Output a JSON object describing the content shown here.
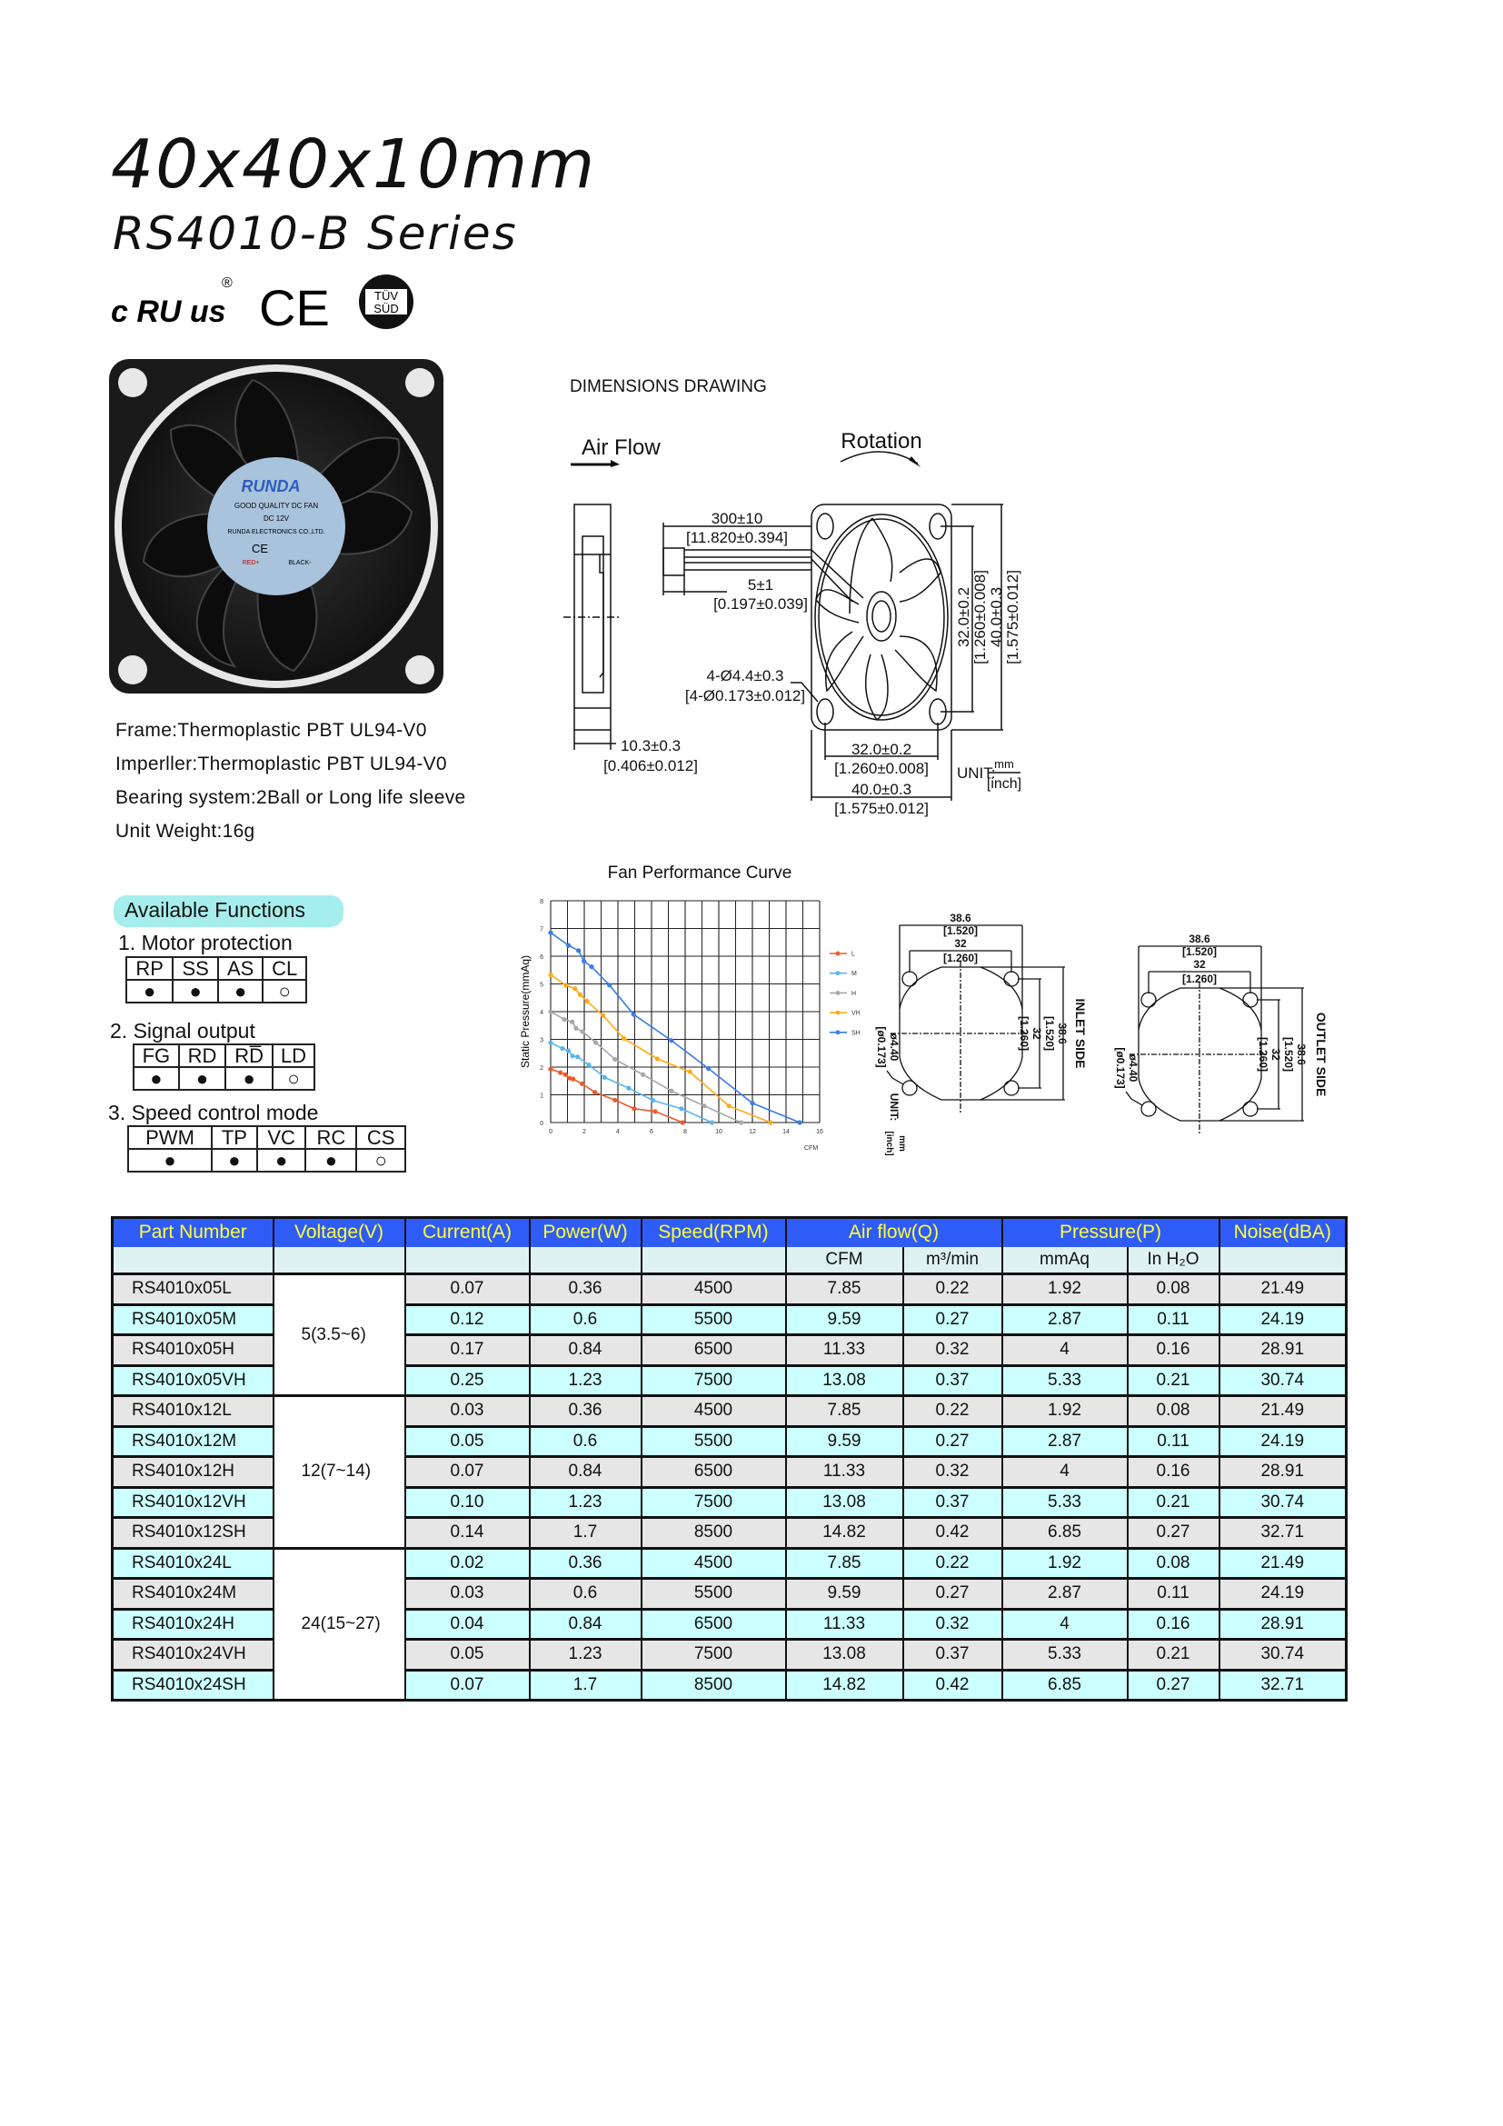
{
  "header": {
    "title": "40x40x10mm",
    "subtitle": "RS4010-B Series",
    "certifications": {
      "ul": "c RU us",
      "ul_reg": "®",
      "ce": "CE",
      "tuv_top": "TÜV",
      "tuv_bottom": "SÜD"
    }
  },
  "product_photo": {
    "brand": "RUNDA",
    "line1": "GOOD QUALITY DC FAN",
    "line2": "DC    12V",
    "line3": "RUNDA ELECTRONICS CO.,LTD.",
    "ce": "CE",
    "red": "RED+",
    "black": "BLACK-"
  },
  "specs": [
    "Frame:Thermoplastic PBT UL94-V0",
    "Imperller:Thermoplastic PBT UL94-V0",
    "Bearing system:2Ball or Long life sleeve",
    "Unit Weight:16g"
  ],
  "dimensions": {
    "title": "DIMENSIONS DRAWING",
    "air_flow": "Air Flow",
    "rotation": "Rotation",
    "lead_length": "300±10",
    "lead_length_in": "[11.820±0.394]",
    "strip": "5±1",
    "strip_in": "[0.197±0.039]",
    "thickness": "10.3±0.3",
    "thickness_in": "[0.406±0.012]",
    "holes": "4-Ø4.4±0.3",
    "holes_in": "[4-Ø0.173±0.012]",
    "pitch": "32.0±0.2",
    "pitch_in": "[1.260±0.008]",
    "size": "40.0±0.3",
    "size_in": "[1.575±0.012]",
    "unit": "UNIT:",
    "unit_mm": "mm",
    "unit_inch": "[inch]"
  },
  "side_drawings": {
    "outer": "38.6",
    "outer_in": "[1.520]",
    "pitch": "32",
    "pitch_in": "[1.260]",
    "hole": "ø4.40",
    "hole_in": "[ø0.173]",
    "unit": "UNIT:",
    "unit_mm": "mm",
    "unit_inch": "[inch]",
    "inlet": "INLET SIDE",
    "outlet": "OUTLET SIDE"
  },
  "functions": {
    "title": "Available Functions",
    "groups": [
      {
        "heading": "1. Motor protection",
        "cols": [
          "RP",
          "SS",
          "AS",
          "CL"
        ],
        "marks": [
          "●",
          "●",
          "●",
          "○"
        ]
      },
      {
        "heading": "2. Signal output",
        "cols": [
          "FG",
          "RD",
          "RD̅",
          "LD"
        ],
        "marks": [
          "●",
          "●",
          "●",
          "○"
        ]
      },
      {
        "heading": "3. Speed control mode",
        "cols": [
          "PWM",
          "TP",
          "VC",
          "RC",
          "CS"
        ],
        "marks": [
          "●",
          "●",
          "●",
          "●",
          "○"
        ]
      }
    ]
  },
  "chart_data": {
    "type": "line",
    "title": "Fan Performance Curve",
    "xlabel": "CFM",
    "ylabel": "Static Pressure(mmAq)",
    "xlim": [
      0,
      16
    ],
    "ylim": [
      0,
      8
    ],
    "xticks": [
      0,
      2,
      4,
      6,
      8,
      10,
      12,
      14,
      16
    ],
    "yticks": [
      0,
      1,
      2,
      3,
      4,
      5,
      6,
      7,
      8
    ],
    "grid": true,
    "legend": "right",
    "series": [
      {
        "name": "L",
        "color": "#ee5a2b",
        "points": [
          [
            0,
            1.93
          ],
          [
            0.58,
            1.8
          ],
          [
            0.88,
            1.73
          ],
          [
            1.12,
            1.6
          ],
          [
            1.33,
            1.57
          ],
          [
            1.87,
            1.4
          ],
          [
            2.63,
            1.09
          ],
          [
            3.82,
            0.81
          ],
          [
            4.97,
            0.5
          ],
          [
            6.21,
            0.4
          ],
          [
            7.85,
            0
          ]
        ]
      },
      {
        "name": "M",
        "color": "#5ab4ee",
        "points": [
          [
            0,
            2.88
          ],
          [
            0.7,
            2.67
          ],
          [
            1.06,
            2.59
          ],
          [
            1.3,
            2.4
          ],
          [
            1.6,
            2.37
          ],
          [
            2.27,
            2.08
          ],
          [
            3.2,
            1.63
          ],
          [
            4.64,
            1.24
          ],
          [
            6.08,
            0.8
          ],
          [
            7.78,
            0.5
          ],
          [
            9.59,
            0
          ]
        ]
      },
      {
        "name": "H",
        "color": "#a5a9a9",
        "points": [
          [
            0,
            4.0
          ],
          [
            0.81,
            3.72
          ],
          [
            1.28,
            3.63
          ],
          [
            1.51,
            3.4
          ],
          [
            1.89,
            3.28
          ],
          [
            2.68,
            2.89
          ],
          [
            3.82,
            2.28
          ],
          [
            5.49,
            1.73
          ],
          [
            7.18,
            1.14
          ],
          [
            9.14,
            0.6
          ],
          [
            11.33,
            0
          ]
        ]
      },
      {
        "name": "VH",
        "color": "#fbaa1a",
        "points": [
          [
            0,
            5.33
          ],
          [
            0.9,
            4.95
          ],
          [
            1.44,
            4.83
          ],
          [
            1.76,
            4.61
          ],
          [
            2.16,
            4.38
          ],
          [
            3.11,
            3.86
          ],
          [
            4.36,
            3.03
          ],
          [
            6.34,
            2.3
          ],
          [
            8.28,
            1.83
          ],
          [
            10.6,
            0.6
          ],
          [
            13.08,
            0
          ]
        ]
      },
      {
        "name": "SH",
        "color": "#3a7ce8",
        "points": [
          [
            0,
            6.85
          ],
          [
            1.06,
            6.39
          ],
          [
            1.66,
            6.2
          ],
          [
            1.98,
            5.82
          ],
          [
            2.43,
            5.62
          ],
          [
            3.49,
            4.96
          ],
          [
            4.93,
            3.9
          ],
          [
            7.18,
            2.96
          ],
          [
            9.38,
            1.95
          ],
          [
            12.0,
            0.7
          ],
          [
            14.82,
            0
          ]
        ]
      }
    ]
  },
  "table": {
    "headers": [
      "Part Number",
      "Voltage(V)",
      "Current(A)",
      "Power(W)",
      "Speed(RPM)",
      "Air flow(Q)",
      "Pressure(P)",
      "Noise(dBA)"
    ],
    "subheaders": [
      "CFM",
      "m³/min",
      "mmAq",
      "In H₂O"
    ],
    "voltages": [
      "5(3.5~6)",
      "12(7~14)",
      "24(15~27)"
    ],
    "rows": [
      [
        "RS4010x05L",
        "0.07",
        "0.36",
        "4500",
        "7.85",
        "0.22",
        "1.92",
        "0.08",
        "21.49"
      ],
      [
        "RS4010x05M",
        "0.12",
        "0.6",
        "5500",
        "9.59",
        "0.27",
        "2.87",
        "0.11",
        "24.19"
      ],
      [
        "RS4010x05H",
        "0.17",
        "0.84",
        "6500",
        "11.33",
        "0.32",
        "4",
        "0.16",
        "28.91"
      ],
      [
        "RS4010x05VH",
        "0.25",
        "1.23",
        "7500",
        "13.08",
        "0.37",
        "5.33",
        "0.21",
        "30.74"
      ],
      [
        "RS4010x12L",
        "0.03",
        "0.36",
        "4500",
        "7.85",
        "0.22",
        "1.92",
        "0.08",
        "21.49"
      ],
      [
        "RS4010x12M",
        "0.05",
        "0.6",
        "5500",
        "9.59",
        "0.27",
        "2.87",
        "0.11",
        "24.19"
      ],
      [
        "RS4010x12H",
        "0.07",
        "0.84",
        "6500",
        "11.33",
        "0.32",
        "4",
        "0.16",
        "28.91"
      ],
      [
        "RS4010x12VH",
        "0.10",
        "1.23",
        "7500",
        "13.08",
        "0.37",
        "5.33",
        "0.21",
        "30.74"
      ],
      [
        "RS4010x12SH",
        "0.14",
        "1.7",
        "8500",
        "14.82",
        "0.42",
        "6.85",
        "0.27",
        "32.71"
      ],
      [
        "RS4010x24L",
        "0.02",
        "0.36",
        "4500",
        "7.85",
        "0.22",
        "1.92",
        "0.08",
        "21.49"
      ],
      [
        "RS4010x24M",
        "0.03",
        "0.6",
        "5500",
        "9.59",
        "0.27",
        "2.87",
        "0.11",
        "24.19"
      ],
      [
        "RS4010x24H",
        "0.04",
        "0.84",
        "6500",
        "11.33",
        "0.32",
        "4",
        "0.16",
        "28.91"
      ],
      [
        "RS4010x24VH",
        "0.05",
        "1.23",
        "7500",
        "13.08",
        "0.37",
        "5.33",
        "0.21",
        "30.74"
      ],
      [
        "RS4010x24SH",
        "0.07",
        "1.7",
        "8500",
        "14.82",
        "0.42",
        "6.85",
        "0.27",
        "32.71"
      ]
    ]
  }
}
